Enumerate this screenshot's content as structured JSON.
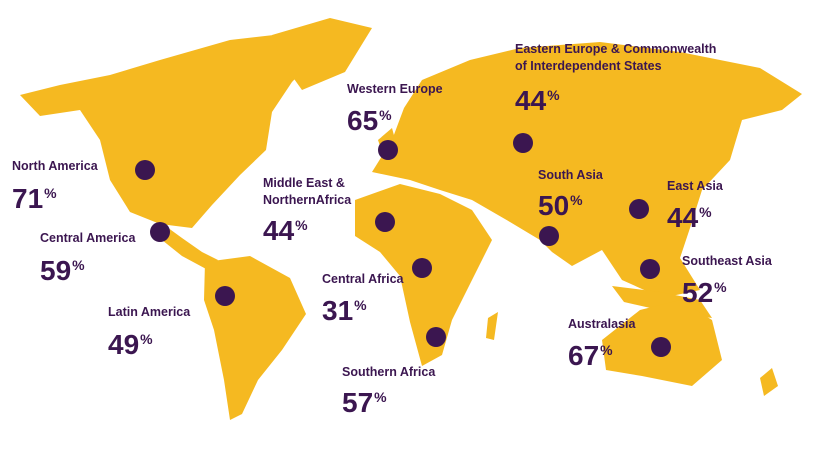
{
  "unit": "%",
  "regions": [
    {
      "name": [
        "North America"
      ],
      "value": 71
    },
    {
      "name": [
        "Central America"
      ],
      "value": 59
    },
    {
      "name": [
        "Latin America"
      ],
      "value": 49
    },
    {
      "name": [
        "Western  Europe"
      ],
      "value": 65
    },
    {
      "name": [
        "Middle East &",
        "NorthernAfrica"
      ],
      "value": 44
    },
    {
      "name": [
        "Eastern Europe & Commonwealth",
        "of Interdependent States"
      ],
      "value": 44
    },
    {
      "name": [
        "Central Africa"
      ],
      "value": 31
    },
    {
      "name": [
        "Southern Africa"
      ],
      "value": 57
    },
    {
      "name": [
        "South  Asia"
      ],
      "value": 50
    },
    {
      "name": [
        "East  Asia"
      ],
      "value": 44
    },
    {
      "name": [
        "Southeast Asia"
      ],
      "value": 52
    },
    {
      "name": [
        "Australasia"
      ],
      "value": 67
    }
  ]
}
